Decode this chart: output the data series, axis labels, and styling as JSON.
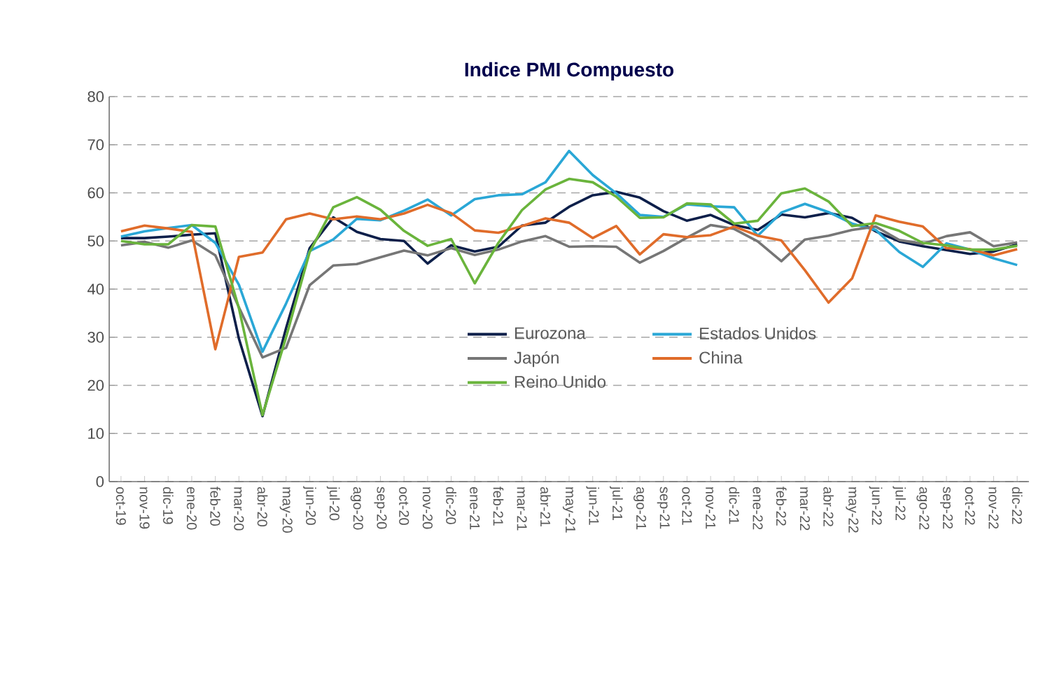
{
  "chart_data": {
    "type": "line",
    "title": "Indice PMI Compuesto",
    "categories": [
      "oct-19",
      "nov-19",
      "dic-19",
      "ene-20",
      "feb-20",
      "mar-20",
      "abr-20",
      "may-20",
      "jun-20",
      "jul-20",
      "ago-20",
      "sep-20",
      "oct-20",
      "nov-20",
      "dic-20",
      "ene-21",
      "feb-21",
      "mar-21",
      "abr-21",
      "may-21",
      "jun-21",
      "jul-21",
      "ago-21",
      "sep-21",
      "oct-21",
      "nov-21",
      "dic-21",
      "ene-22",
      "feb-22",
      "mar-22",
      "abr-22",
      "may-22",
      "jun-22",
      "jul-22",
      "ago-22",
      "sep-22",
      "oct-22",
      "nov-22",
      "dic-22"
    ],
    "series": [
      {
        "name": "Eurozona",
        "color": "#0d1f4a",
        "values": [
          50.6,
          50.6,
          50.9,
          51.3,
          51.6,
          29.7,
          13.6,
          31.9,
          48.5,
          54.9,
          51.9,
          50.4,
          50.0,
          45.3,
          49.1,
          47.8,
          48.8,
          53.2,
          53.8,
          57.1,
          59.5,
          60.2,
          59.0,
          56.2,
          54.2,
          55.4,
          53.3,
          52.3,
          55.5,
          54.9,
          55.8,
          54.8,
          52.0,
          49.9,
          48.9,
          48.1,
          47.3,
          47.8,
          49.3
        ]
      },
      {
        "name": "Estados Unidos",
        "color": "#2aa7d6",
        "values": [
          50.9,
          52.0,
          52.7,
          53.3,
          49.6,
          40.9,
          27.0,
          37.0,
          47.9,
          50.3,
          54.6,
          54.3,
          56.3,
          58.6,
          55.3,
          58.7,
          59.5,
          59.7,
          62.2,
          68.7,
          63.7,
          59.9,
          55.4,
          55.0,
          57.6,
          57.2,
          57.0,
          51.1,
          55.9,
          57.7,
          56.0,
          53.6,
          52.3,
          47.7,
          44.6,
          49.5,
          48.2,
          46.4,
          45.0
        ]
      },
      {
        "name": "Japón",
        "color": "#767676",
        "values": [
          49.1,
          49.8,
          48.6,
          50.1,
          47.0,
          36.2,
          25.8,
          27.8,
          40.8,
          44.9,
          45.2,
          46.6,
          48.0,
          47.0,
          48.5,
          47.1,
          48.2,
          49.9,
          51.0,
          48.8,
          48.9,
          48.8,
          45.5,
          47.9,
          50.7,
          53.3,
          52.5,
          49.9,
          45.8,
          50.3,
          51.1,
          52.3,
          53.0,
          50.2,
          49.4,
          51.0,
          51.8,
          48.9,
          49.7
        ]
      },
      {
        "name": "China",
        "color": "#e06c2a",
        "values": [
          52.0,
          53.2,
          52.6,
          51.9,
          27.5,
          46.7,
          47.6,
          54.5,
          55.7,
          54.5,
          55.1,
          54.5,
          55.7,
          57.5,
          55.8,
          52.2,
          51.7,
          53.1,
          54.7,
          53.8,
          50.6,
          53.1,
          47.2,
          51.4,
          50.8,
          51.2,
          53.0,
          51.1,
          50.1,
          43.9,
          37.2,
          42.2,
          55.3,
          54.0,
          53.0,
          48.5,
          48.3,
          47.0,
          48.3
        ]
      },
      {
        "name": "Reino Unido",
        "color": "#6ab43c",
        "values": [
          50.0,
          49.3,
          49.3,
          53.3,
          53.0,
          36.0,
          13.8,
          30.0,
          47.7,
          57.0,
          59.1,
          56.5,
          52.1,
          49.0,
          50.4,
          41.2,
          49.6,
          56.4,
          60.7,
          62.9,
          62.2,
          59.2,
          54.8,
          54.9,
          57.8,
          57.6,
          53.6,
          54.2,
          59.9,
          60.9,
          58.2,
          53.1,
          53.7,
          52.1,
          49.6,
          49.1,
          48.2,
          48.2,
          49.0
        ]
      }
    ],
    "ylim": [
      0,
      80
    ],
    "yticks": [
      0,
      10,
      20,
      30,
      40,
      50,
      60,
      70,
      80
    ],
    "grid": "y",
    "legend": "center",
    "marker": "none",
    "line_style": "solid"
  }
}
